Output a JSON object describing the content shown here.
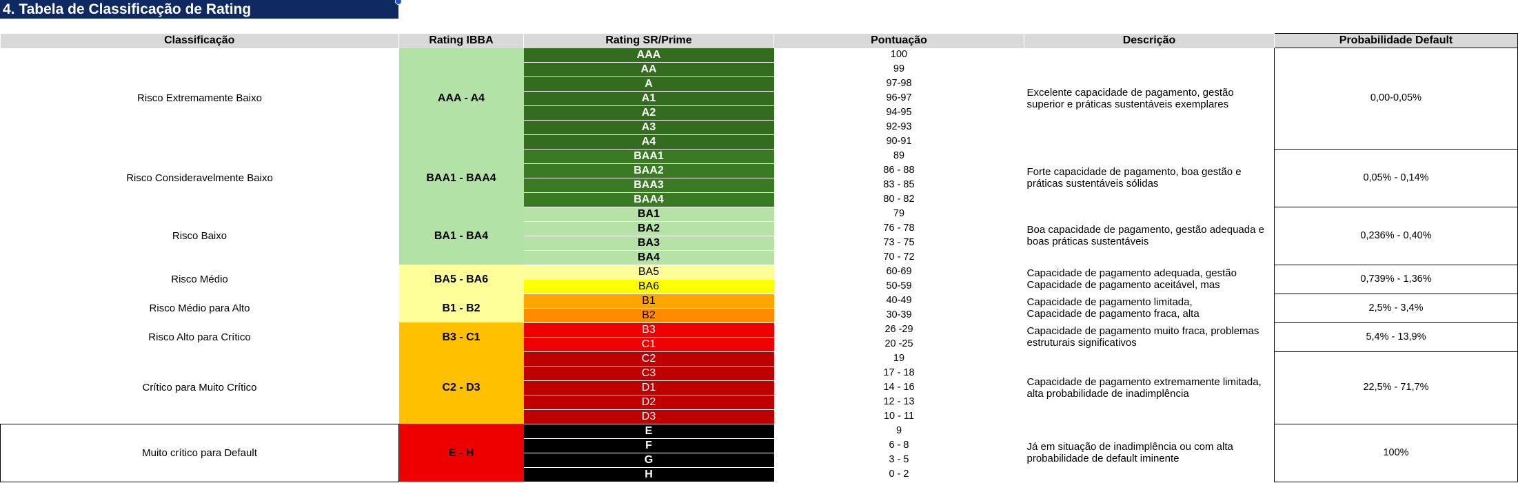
{
  "title": "4. Tabela de Classificação de Rating",
  "colors": {
    "title_bg": "#0f2a63",
    "header_bg": "#d9d9d9",
    "ibba_light_green": "#b3e2a6",
    "ibba_light_yellow": "#ffff99",
    "ibba_orange": "#ffc000",
    "ibba_red": "#ee0000",
    "sr_dark_green": "#336b1f",
    "sr_green": "#397a22",
    "sr_light_green": "#b6e2a6",
    "sr_light_yellow": "#ffff99",
    "sr_yellow": "#ffff00",
    "sr_orange": "#ffa500",
    "sr_orange2": "#ff8c00",
    "sr_red": "#ee0000",
    "sr_dark_red": "#c00000",
    "sr_black": "#000000"
  },
  "headers": {
    "classificacao": "Classificação",
    "rating_ibba": "Rating IBBA",
    "rating_sr": "Rating SR/Prime",
    "pontuacao": "Pontuação",
    "descricao": "Descrição",
    "probabilidade": "Probabilidade Default"
  },
  "groups": [
    {
      "classificacao": "Risco Extremamente Baixo",
      "ibba": "AAA - A4",
      "ibba_color": "#b3e2a6",
      "descricao": "Excelente capacidade de pagamento, gestão superior e práticas sustentáveis exemplares",
      "probabilidade": "0,00-0,05%",
      "rows": [
        {
          "sr": "AAA",
          "pts": "100",
          "bg": "#336b1f",
          "fg": "#ffffff",
          "bold": true
        },
        {
          "sr": "AA",
          "pts": "99",
          "bg": "#336b1f",
          "fg": "#ffffff",
          "bold": true
        },
        {
          "sr": "A",
          "pts": "97-98",
          "bg": "#336b1f",
          "fg": "#ffffff",
          "bold": true
        },
        {
          "sr": "A1",
          "pts": "96-97",
          "bg": "#336b1f",
          "fg": "#ffffff",
          "bold": true
        },
        {
          "sr": "A2",
          "pts": "94-95",
          "bg": "#336b1f",
          "fg": "#ffffff",
          "bold": true
        },
        {
          "sr": "A3",
          "pts": "92-93",
          "bg": "#336b1f",
          "fg": "#ffffff",
          "bold": true
        },
        {
          "sr": "A4",
          "pts": "90-91",
          "bg": "#336b1f",
          "fg": "#ffffff",
          "bold": true
        }
      ]
    },
    {
      "classificacao": "Risco Consideravelmente Baixo",
      "ibba": "BAA1 - BAA4",
      "ibba_color": "#b3e2a6",
      "descricao": "Forte capacidade de pagamento, boa gestão e práticas sustentáveis sólidas",
      "probabilidade": "0,05% - 0,14%",
      "rows": [
        {
          "sr": "BAA1",
          "pts": "89",
          "bg": "#397a22",
          "fg": "#ffffff",
          "bold": true
        },
        {
          "sr": "BAA2",
          "pts": "86 - 88",
          "bg": "#397a22",
          "fg": "#ffffff",
          "bold": true
        },
        {
          "sr": "BAA3",
          "pts": "83 - 85",
          "bg": "#397a22",
          "fg": "#ffffff",
          "bold": true
        },
        {
          "sr": "BAA4",
          "pts": "80 - 82",
          "bg": "#397a22",
          "fg": "#ffffff",
          "bold": true
        }
      ]
    },
    {
      "classificacao": "Risco Baixo",
      "ibba": "BA1 - BA4",
      "ibba_color": "#b3e2a6",
      "descricao": "Boa capacidade de pagamento, gestão adequada e boas práticas sustentáveis",
      "probabilidade": "0,236% - 0,40%",
      "rows": [
        {
          "sr": "BA1",
          "pts": "79",
          "bg": "#b6e2a6",
          "fg": "#000000",
          "bold": true
        },
        {
          "sr": "BA2",
          "pts": "76 - 78",
          "bg": "#b6e2a6",
          "fg": "#000000",
          "bold": true
        },
        {
          "sr": "BA3",
          "pts": "73 - 75",
          "bg": "#b6e2a6",
          "fg": "#000000",
          "bold": true
        },
        {
          "sr": "BA4",
          "pts": "70 - 72",
          "bg": "#b6e2a6",
          "fg": "#000000",
          "bold": true
        }
      ]
    },
    {
      "classificacao": "Risco Médio",
      "ibba": "BA5 - BA6",
      "ibba_color": "#ffff99",
      "descricao": "Capacidade de pagamento adequada, gestão\nCapacidade de pagamento aceitável, mas",
      "probabilidade": "0,739% - 1,36%",
      "rows": [
        {
          "sr": "BA5",
          "pts": "60-69",
          "bg": "#ffff99",
          "fg": "#000000",
          "bold": false
        },
        {
          "sr": "BA6",
          "pts": "50-59",
          "bg": "#ffff00",
          "fg": "#000000",
          "bold": false
        }
      ]
    },
    {
      "classificacao": "Risco Médio para Alto",
      "ibba": "B1 - B2",
      "ibba_color": "#ffff99",
      "descricao": "Capacidade de pagamento limitada,\nCapacidade de pagamento fraca, alta",
      "probabilidade": "2,5% - 3,4%",
      "rows": [
        {
          "sr": "B1",
          "pts": "40-49",
          "bg": "#ffa500",
          "fg": "#000000",
          "bold": false
        },
        {
          "sr": "B2",
          "pts": "30-39",
          "bg": "#ff8c00",
          "fg": "#000000",
          "bold": false
        }
      ]
    },
    {
      "classificacao": "Risco Alto para Crítico",
      "ibba": "B3 - C1",
      "ibba_color": "#ffc000",
      "descricao": "Capacidade de pagamento muito fraca, problemas estruturais significativos",
      "probabilidade": "5,4% - 13,9%",
      "rows": [
        {
          "sr": "B3",
          "pts": "26 -29",
          "bg": "#ee0000",
          "fg": "#ffffff",
          "bold": false
        },
        {
          "sr": "C1",
          "pts": "20 -25",
          "bg": "#ee0000",
          "fg": "#ffffff",
          "bold": false
        }
      ]
    },
    {
      "classificacao": "Crítico para Muito Crítico",
      "ibba": "C2 - D3",
      "ibba_color": "#ffc000",
      "descricao": "Capacidade de pagamento extremamente limitada, alta probabilidade de inadimplência",
      "probabilidade": "22,5% - 71,7%",
      "rows": [
        {
          "sr": "C2",
          "pts": "19",
          "bg": "#c00000",
          "fg": "#ffffff",
          "bold": false
        },
        {
          "sr": "C3",
          "pts": "17 - 18",
          "bg": "#c00000",
          "fg": "#ffffff",
          "bold": false
        },
        {
          "sr": "D1",
          "pts": "14 - 16",
          "bg": "#c00000",
          "fg": "#ffffff",
          "bold": false
        },
        {
          "sr": "D2",
          "pts": "12 - 13",
          "bg": "#c00000",
          "fg": "#ffffff",
          "bold": false
        },
        {
          "sr": "D3",
          "pts": "10 - 11",
          "bg": "#c00000",
          "fg": "#ffffff",
          "bold": false
        }
      ]
    },
    {
      "classificacao": "Muito crítico para Default",
      "ibba": "E - H",
      "ibba_color": "#ee0000",
      "descricao": "Já em situação de inadimplência ou com alta probabilidade de default iminente",
      "probabilidade": "100%",
      "rows": [
        {
          "sr": "E",
          "pts": "9",
          "bg": "#000000",
          "fg": "#ffffff",
          "bold": true
        },
        {
          "sr": "F",
          "pts": "6 - 8",
          "bg": "#000000",
          "fg": "#ffffff",
          "bold": true
        },
        {
          "sr": "G",
          "pts": "3 - 5",
          "bg": "#000000",
          "fg": "#ffffff",
          "bold": true
        },
        {
          "sr": "H",
          "pts": "0 - 2",
          "bg": "#000000",
          "fg": "#ffffff",
          "bold": true
        }
      ]
    }
  ]
}
